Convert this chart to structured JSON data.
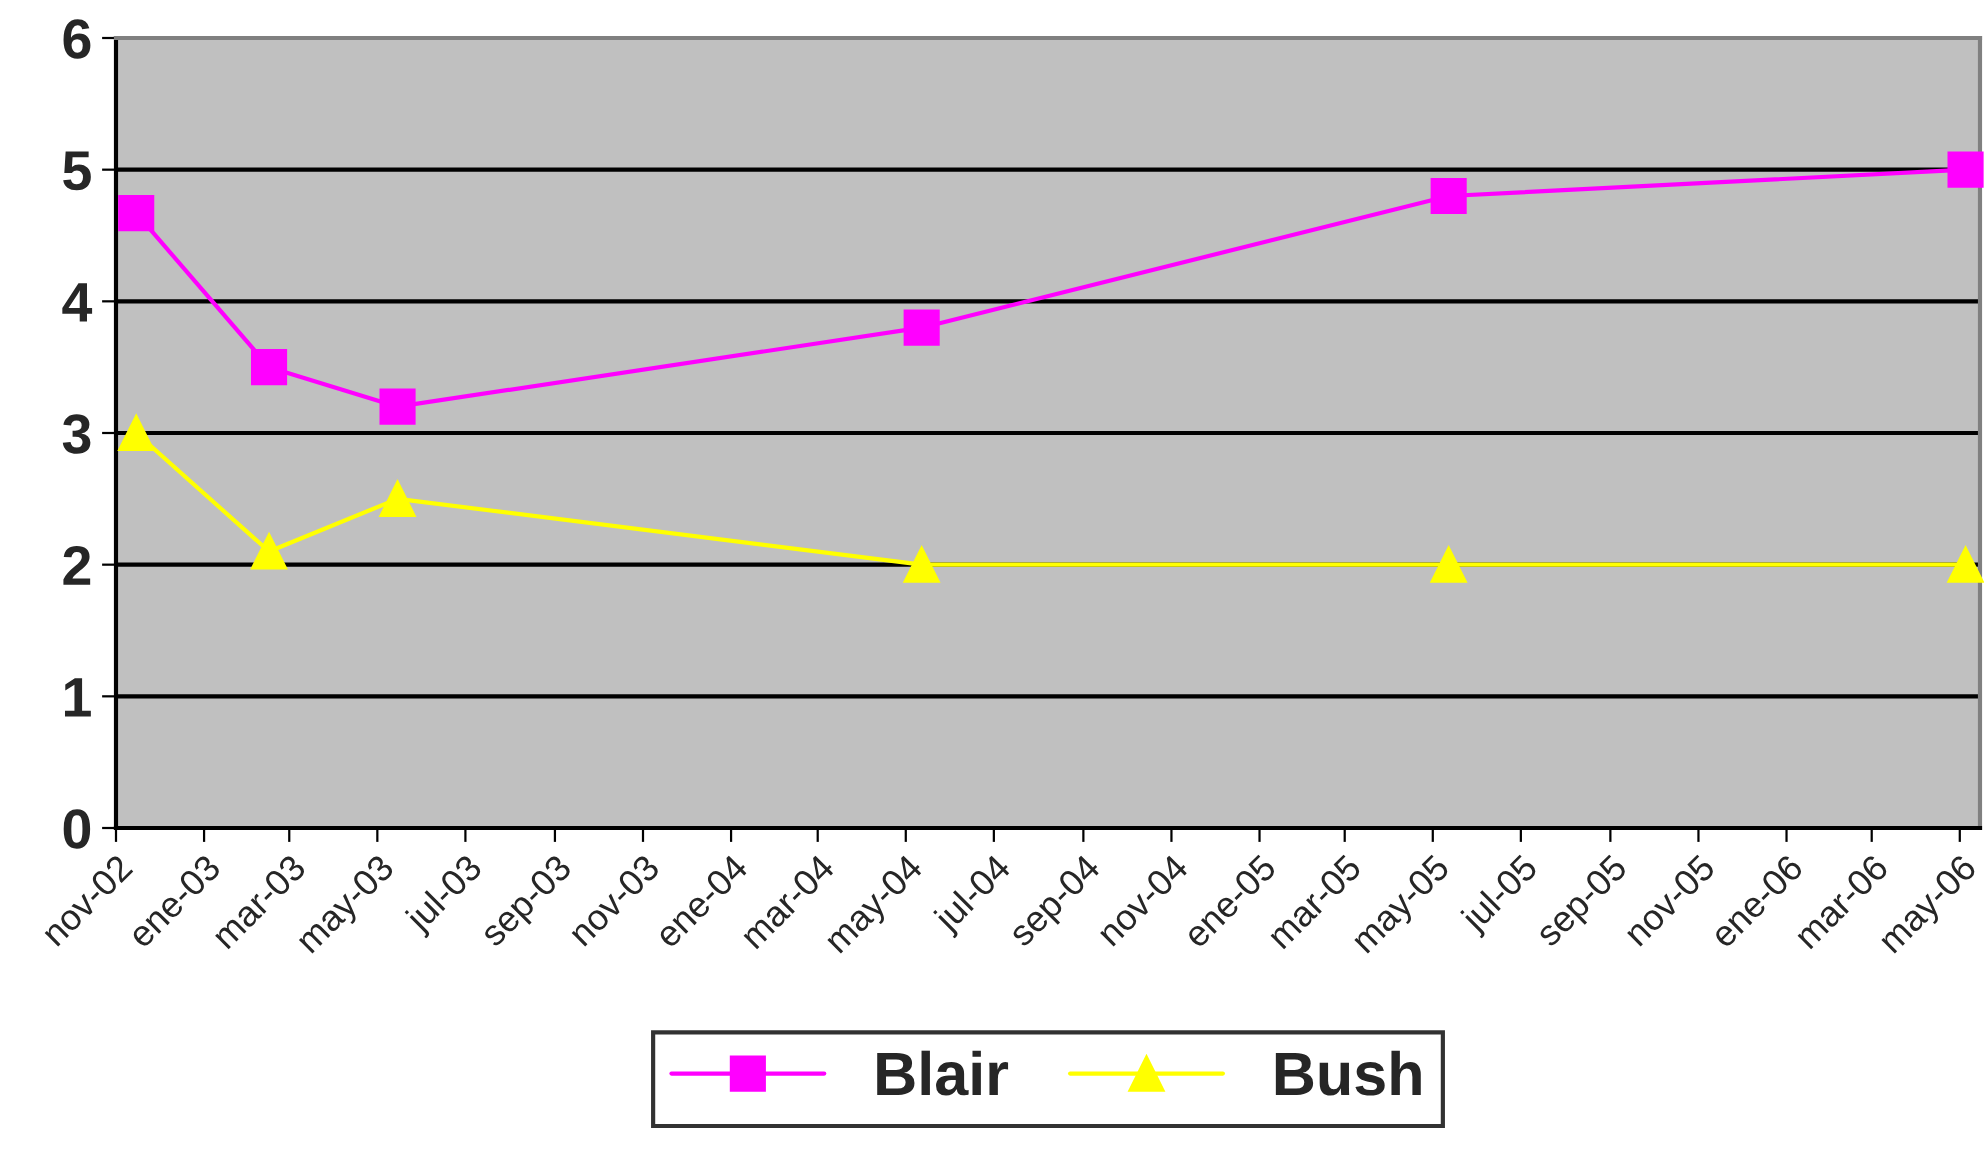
{
  "chart_data": {
    "type": "line",
    "x": [
      "2002-11-15",
      "2003-02-15",
      "2003-05-15",
      "2004-05-12",
      "2005-05-12",
      "2006-05-05"
    ],
    "series": [
      {
        "name": "Blair",
        "color": "#ff00ff",
        "marker": "square",
        "values": [
          4.67,
          3.5,
          3.2,
          3.8,
          4.8,
          5.0
        ]
      },
      {
        "name": "Bush",
        "color": "#ffff00",
        "marker": "triangle",
        "values": [
          3.0,
          2.1,
          2.5,
          2.0,
          2.0,
          2.0
        ]
      }
    ],
    "xlim": [
      "2002-11-01",
      "2006-05-15"
    ],
    "xticks": [
      {
        "value": "2002-11-01",
        "label": "nov-02"
      },
      {
        "value": "2003-01-01",
        "label": "ene-03"
      },
      {
        "value": "2003-03-01",
        "label": "mar-03"
      },
      {
        "value": "2003-05-01",
        "label": "may-03"
      },
      {
        "value": "2003-07-01",
        "label": "jul-03"
      },
      {
        "value": "2003-09-01",
        "label": "sep-03"
      },
      {
        "value": "2003-11-01",
        "label": "nov-03"
      },
      {
        "value": "2004-01-01",
        "label": "ene-04"
      },
      {
        "value": "2004-03-01",
        "label": "mar-04"
      },
      {
        "value": "2004-05-01",
        "label": "may-04"
      },
      {
        "value": "2004-07-01",
        "label": "jul-04"
      },
      {
        "value": "2004-09-01",
        "label": "sep-04"
      },
      {
        "value": "2004-11-01",
        "label": "nov-04"
      },
      {
        "value": "2005-01-01",
        "label": "ene-05"
      },
      {
        "value": "2005-03-01",
        "label": "mar-05"
      },
      {
        "value": "2005-05-01",
        "label": "may-05"
      },
      {
        "value": "2005-07-01",
        "label": "jul-05"
      },
      {
        "value": "2005-09-01",
        "label": "sep-05"
      },
      {
        "value": "2005-11-01",
        "label": "nov-05"
      },
      {
        "value": "2006-01-01",
        "label": "ene-06"
      },
      {
        "value": "2006-03-01",
        "label": "mar-06"
      },
      {
        "value": "2006-05-01",
        "label": "may-06"
      }
    ],
    "ylim": [
      0,
      6
    ],
    "yticks": [
      0,
      1,
      2,
      3,
      4,
      5,
      6
    ],
    "grid": "y",
    "legend": "bottom",
    "line_style": "solid"
  }
}
